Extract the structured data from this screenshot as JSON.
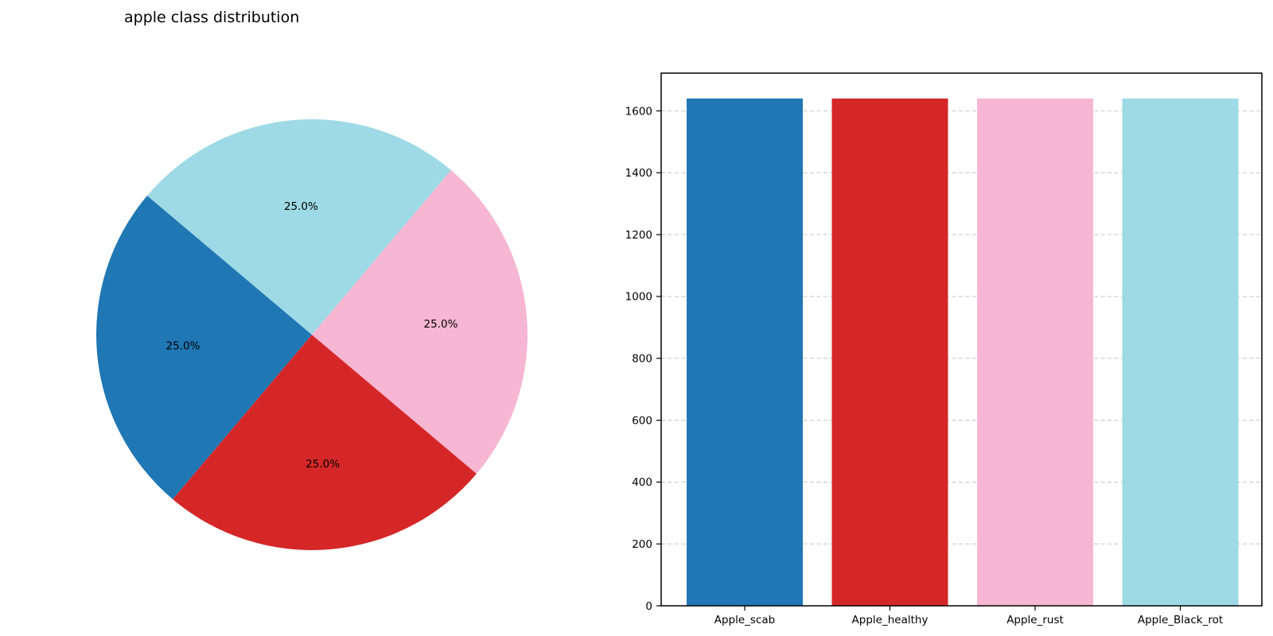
{
  "chart_data": [
    {
      "type": "pie",
      "title": "apple class distribution",
      "categories": [
        "Apple_scab",
        "Apple_healthy",
        "Apple_rust",
        "Apple_Black_rot"
      ],
      "values": [
        25.0,
        25.0,
        25.0,
        25.0
      ],
      "slice_labels": [
        "25.0%",
        "25.0%",
        "25.0%",
        "25.0%"
      ],
      "colors": [
        "#1f77b4",
        "#d62728",
        "#f7b6d2",
        "#9edae5"
      ],
      "start_angle": 139.8,
      "direction": "counterclockwise",
      "label_distance": 0.6,
      "legend": "none"
    },
    {
      "type": "bar",
      "categories": [
        "Apple_scab",
        "Apple_healthy",
        "Apple_rust",
        "Apple_Black_rot"
      ],
      "values": [
        1640,
        1640,
        1640,
        1640
      ],
      "colors": [
        "#1f77b4",
        "#d62728",
        "#f7b6d2",
        "#9edae5"
      ],
      "title": "",
      "xlabel": "",
      "ylabel": "",
      "ylim": [
        0,
        1722
      ],
      "yticks": [
        0,
        200,
        400,
        600,
        800,
        1000,
        1200,
        1400,
        1600
      ],
      "grid": {
        "axis": "y",
        "style": "dashed",
        "color": "#c9c9c9"
      },
      "frame": "box",
      "legend": "none"
    }
  ]
}
